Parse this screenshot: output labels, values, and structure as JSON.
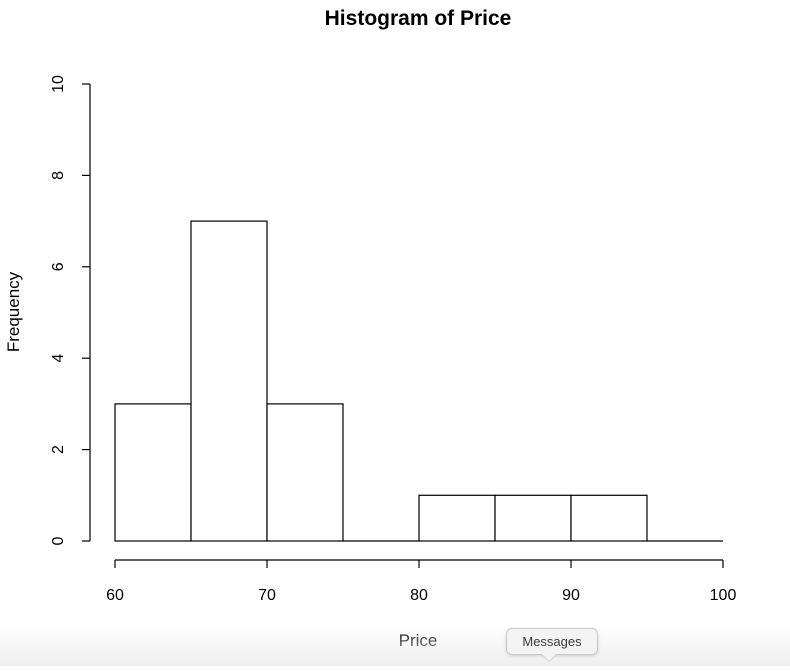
{
  "chart_data": {
    "type": "bar",
    "title": "Histogram of Price",
    "xlabel": "Price",
    "ylabel": "Frequency",
    "bins": [
      {
        "start": 60,
        "end": 65,
        "count": 3
      },
      {
        "start": 65,
        "end": 70,
        "count": 7
      },
      {
        "start": 70,
        "end": 75,
        "count": 3
      },
      {
        "start": 75,
        "end": 80,
        "count": 0
      },
      {
        "start": 80,
        "end": 85,
        "count": 1
      },
      {
        "start": 85,
        "end": 90,
        "count": 1
      },
      {
        "start": 90,
        "end": 95,
        "count": 1
      },
      {
        "start": 95,
        "end": 100,
        "count": 0
      }
    ],
    "xlim": [
      60,
      100
    ],
    "ylim": [
      0,
      10
    ],
    "xticks": [
      "60",
      "70",
      "80",
      "90",
      "100"
    ],
    "yticks": [
      "0",
      "2",
      "4",
      "6",
      "8",
      "10"
    ],
    "grid": false,
    "bar_fill": "#ffffff",
    "bar_stroke": "#000000"
  },
  "tooltip": {
    "label": "Messages"
  }
}
